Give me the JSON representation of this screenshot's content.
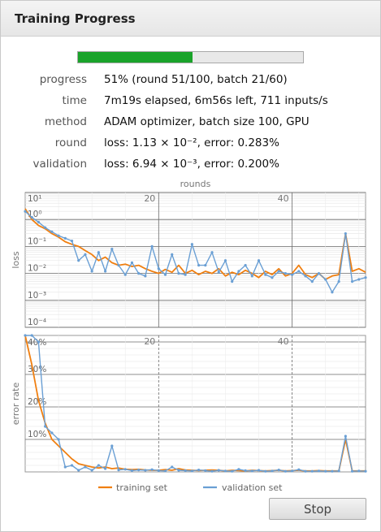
{
  "window": {
    "title": "Training Progress"
  },
  "progress": {
    "fraction": 0.51
  },
  "info": [
    {
      "label": "progress",
      "value": "51% (round 51/100, batch 21/60)"
    },
    {
      "label": "time",
      "value": "7m19s elapsed, 6m56s left, 711 inputs/s"
    },
    {
      "label": "method",
      "value": "ADAM optimizer, batch size 100, GPU"
    },
    {
      "label": "round",
      "value": "loss: 1.13 × 10⁻², error: 0.283%"
    },
    {
      "label": "validation",
      "value": "loss: 6.94 × 10⁻³, error: 0.200%"
    }
  ],
  "legend": {
    "training": "training set",
    "validation": "validation set"
  },
  "colors": {
    "training": "#f07f10",
    "validation": "#6a9fd4",
    "progress": "#1aa32a"
  },
  "stop_button": {
    "label": "Stop"
  },
  "chart_data": [
    {
      "type": "line",
      "title": "rounds",
      "xlabel": "rounds",
      "ylabel": "loss",
      "log_scale_y": true,
      "ylim": [
        0.0001,
        10
      ],
      "xlim": [
        0,
        51
      ],
      "xticks": [
        20,
        40
      ],
      "yticks": [
        "10¹",
        "10⁰",
        "10⁻¹",
        "10⁻²",
        "10⁻³",
        "10⁻⁴"
      ],
      "series": [
        {
          "name": "training set",
          "color": "#f07f10",
          "x": [
            0,
            1,
            2,
            3,
            4,
            5,
            6,
            7,
            8,
            9,
            10,
            11,
            12,
            13,
            14,
            15,
            16,
            17,
            18,
            19,
            20,
            21,
            22,
            23,
            24,
            25,
            26,
            27,
            28,
            29,
            30,
            31,
            32,
            33,
            34,
            35,
            36,
            37,
            38,
            39,
            40,
            41,
            42,
            43,
            44,
            45,
            46,
            47,
            48,
            49,
            50,
            51
          ],
          "y": [
            2.5,
            1.0,
            0.6,
            0.45,
            0.3,
            0.22,
            0.15,
            0.12,
            0.1,
            0.07,
            0.05,
            0.03,
            0.04,
            0.025,
            0.02,
            0.022,
            0.018,
            0.02,
            0.015,
            0.012,
            0.01,
            0.014,
            0.011,
            0.02,
            0.01,
            0.013,
            0.009,
            0.012,
            0.01,
            0.015,
            0.008,
            0.011,
            0.009,
            0.013,
            0.01,
            0.007,
            0.012,
            0.009,
            0.015,
            0.008,
            0.01,
            0.02,
            0.009,
            0.007,
            0.01,
            0.006,
            0.008,
            0.009,
            0.3,
            0.012,
            0.015,
            0.011
          ]
        },
        {
          "name": "validation set",
          "color": "#6a9fd4",
          "x": [
            0,
            1,
            2,
            3,
            4,
            5,
            6,
            7,
            8,
            9,
            10,
            11,
            12,
            13,
            14,
            15,
            16,
            17,
            18,
            19,
            20,
            21,
            22,
            23,
            24,
            25,
            26,
            27,
            28,
            29,
            30,
            31,
            32,
            33,
            34,
            35,
            36,
            37,
            38,
            39,
            40,
            41,
            42,
            43,
            44,
            45,
            46,
            47,
            48,
            49,
            50,
            51
          ],
          "y": [
            2.0,
            1.2,
            0.8,
            0.5,
            0.35,
            0.25,
            0.2,
            0.16,
            0.03,
            0.05,
            0.012,
            0.06,
            0.012,
            0.08,
            0.02,
            0.009,
            0.025,
            0.01,
            0.008,
            0.1,
            0.015,
            0.009,
            0.05,
            0.01,
            0.009,
            0.12,
            0.02,
            0.02,
            0.06,
            0.011,
            0.03,
            0.005,
            0.012,
            0.02,
            0.008,
            0.03,
            0.009,
            0.007,
            0.012,
            0.01,
            0.009,
            0.012,
            0.008,
            0.005,
            0.01,
            0.006,
            0.002,
            0.005,
            0.3,
            0.005,
            0.006,
            0.007
          ]
        }
      ]
    },
    {
      "type": "line",
      "xlabel": "",
      "ylabel": "error rate",
      "ylim": [
        0,
        42
      ],
      "xlim": [
        0,
        51
      ],
      "xticks": [
        20,
        40
      ],
      "yticks": [
        "10%",
        "20%",
        "30%",
        "40%"
      ],
      "series": [
        {
          "name": "training set",
          "color": "#f07f10",
          "x": [
            0,
            1,
            2,
            3,
            4,
            5,
            6,
            7,
            8,
            9,
            10,
            11,
            12,
            13,
            14,
            15,
            16,
            17,
            18,
            19,
            20,
            21,
            22,
            23,
            24,
            25,
            26,
            27,
            28,
            29,
            30,
            31,
            32,
            33,
            34,
            35,
            36,
            37,
            38,
            39,
            40,
            41,
            42,
            43,
            44,
            45,
            46,
            47,
            48,
            49,
            50,
            51
          ],
          "y": [
            42,
            33,
            22,
            15,
            10,
            8,
            6,
            4,
            2.5,
            2,
            1.5,
            1.2,
            1.5,
            1.0,
            1.2,
            0.8,
            0.7,
            0.8,
            0.6,
            0.5,
            0.5,
            0.7,
            0.5,
            1.0,
            0.6,
            0.5,
            0.4,
            0.5,
            0.6,
            0.5,
            0.3,
            0.5,
            0.4,
            0.3,
            0.5,
            0.4,
            0.3,
            0.4,
            0.5,
            0.3,
            0.4,
            0.5,
            0.3,
            0.3,
            0.4,
            0.3,
            0.3,
            0.3,
            10,
            0.3,
            0.3,
            0.3
          ]
        },
        {
          "name": "validation set",
          "color": "#6a9fd4",
          "x": [
            0,
            1,
            2,
            3,
            4,
            5,
            6,
            7,
            8,
            9,
            10,
            11,
            12,
            13,
            14,
            15,
            16,
            17,
            18,
            19,
            20,
            21,
            22,
            23,
            24,
            25,
            26,
            27,
            28,
            29,
            30,
            31,
            32,
            33,
            34,
            35,
            36,
            37,
            38,
            39,
            40,
            41,
            42,
            43,
            44,
            45,
            46,
            47,
            48,
            49,
            50,
            51
          ],
          "y": [
            42,
            42,
            40,
            14,
            12,
            10,
            1.5,
            2,
            0.5,
            1.5,
            0.5,
            2,
            1.0,
            8,
            0.6,
            0.8,
            0.4,
            0.6,
            0.5,
            0.7,
            0.4,
            0.3,
            1.5,
            0.5,
            0.4,
            0.3,
            0.6,
            0.4,
            0.2,
            0.5,
            0.3,
            0.2,
            0.8,
            0.4,
            0.3,
            0.5,
            0.2,
            0.3,
            0.6,
            0.2,
            0.3,
            0.7,
            0.2,
            0.2,
            0.3,
            0.2,
            0.2,
            0.3,
            11,
            0.2,
            0.3,
            0.2
          ]
        }
      ]
    }
  ]
}
